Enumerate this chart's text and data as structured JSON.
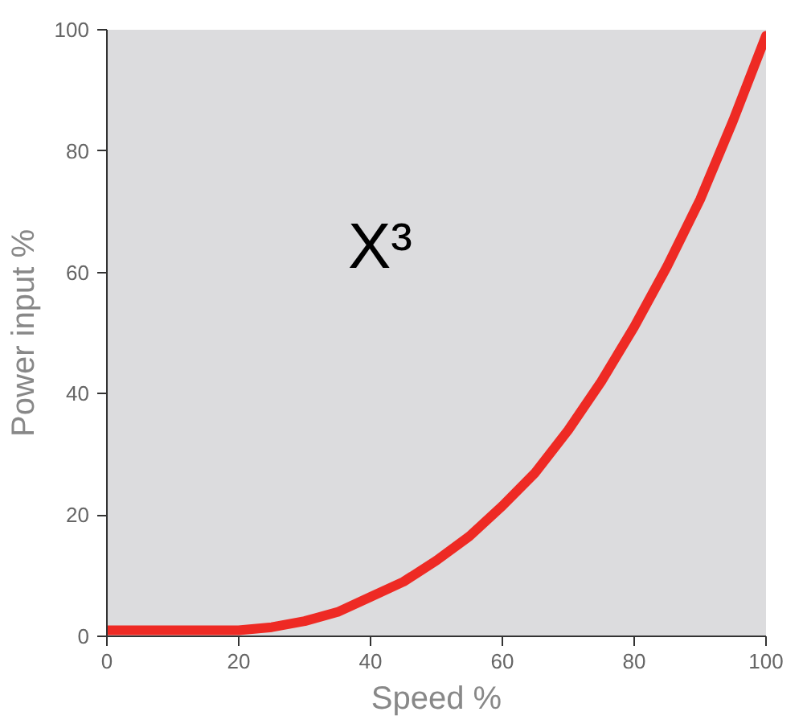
{
  "chart_data": {
    "type": "line",
    "xlabel": "Speed %",
    "ylabel": "Power input %",
    "annotations": [
      "X³"
    ],
    "x": [
      0,
      10,
      20,
      25,
      30,
      35,
      40,
      45,
      50,
      55,
      60,
      65,
      70,
      75,
      80,
      85,
      90,
      95,
      100
    ],
    "series": [
      {
        "color": "#ee2a24",
        "values": [
          1,
          1,
          1,
          1.5,
          2.5,
          4,
          6.5,
          9,
          12.5,
          16.5,
          21.5,
          27,
          34,
          42,
          51,
          61,
          72,
          85,
          99
        ]
      }
    ],
    "xlim": [
      0,
      100
    ],
    "ylim": [
      0,
      100
    ],
    "xticks": [
      0,
      20,
      40,
      60,
      80,
      100
    ],
    "yticks": [
      0,
      20,
      40,
      60,
      80,
      100
    ],
    "grid": false,
    "marker": "none",
    "line_style": "solid"
  }
}
